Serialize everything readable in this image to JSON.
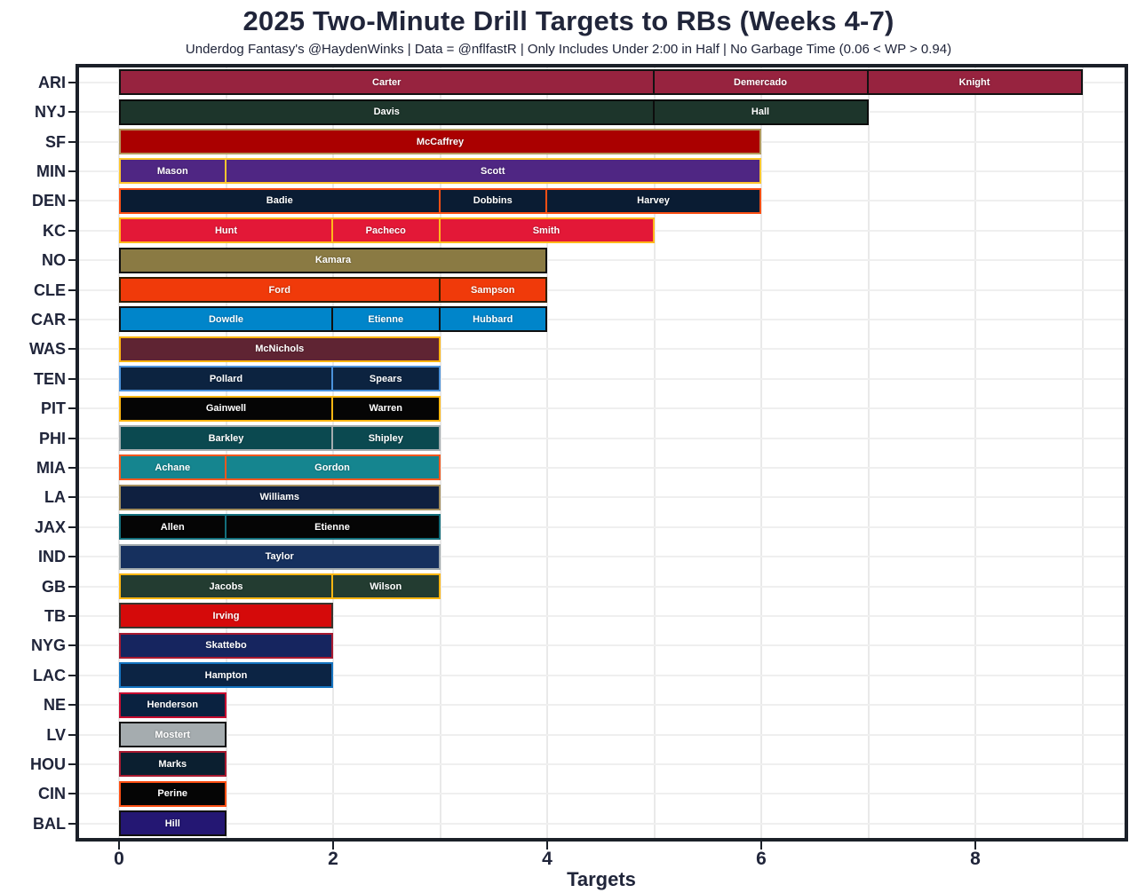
{
  "title": "2025 Two-Minute Drill Targets to RBs (Weeks 4-7)",
  "subtitle": "Underdog Fantasy's @HaydenWinks | Data = @nflfastR | Only Includes Under 2:00 in Half | No Garbage Time (0.06 < WP > 0.94)",
  "chart_data": {
    "type": "bar",
    "orientation": "horizontal",
    "title": "2025 Two-Minute Drill Targets to RBs (Weeks 4-7)",
    "xlabel": "Targets",
    "ylabel": "",
    "x_ticks": [
      0,
      2,
      4,
      6,
      8
    ],
    "xlim": [
      0,
      9.39
    ],
    "grid": true,
    "legend": "none",
    "teams": [
      {
        "team": "ARI",
        "fill": "#97233F",
        "border": "#121212",
        "segments": [
          {
            "player": "Carter",
            "targets": 5
          },
          {
            "player": "Demercado",
            "targets": 2
          },
          {
            "player": "Knight",
            "targets": 2
          }
        ]
      },
      {
        "team": "NYJ",
        "fill": "#1d352b",
        "border": "#0d0d0d",
        "segments": [
          {
            "player": "Davis",
            "targets": 5
          },
          {
            "player": "Hall",
            "targets": 2
          }
        ]
      },
      {
        "team": "SF",
        "fill": "#AA0000",
        "border": "#B3995D",
        "segments": [
          {
            "player": "McCaffrey",
            "targets": 6
          }
        ]
      },
      {
        "team": "MIN",
        "fill": "#4F2683",
        "border": "#FFC62F",
        "segments": [
          {
            "player": "Mason",
            "targets": 1
          },
          {
            "player": "Scott",
            "targets": 5
          }
        ]
      },
      {
        "team": "DEN",
        "fill": "#0a1c33",
        "border": "#FB4F14",
        "segments": [
          {
            "player": "Badie",
            "targets": 3
          },
          {
            "player": "Dobbins",
            "targets": 1
          },
          {
            "player": "Harvey",
            "targets": 2
          }
        ]
      },
      {
        "team": "KC",
        "fill": "#E31837",
        "border": "#FFB81C",
        "segments": [
          {
            "player": "Hunt",
            "targets": 2
          },
          {
            "player": "Pacheco",
            "targets": 1
          },
          {
            "player": "Smith",
            "targets": 2
          }
        ]
      },
      {
        "team": "NO",
        "fill": "#8a7a43",
        "border": "#101010",
        "segments": [
          {
            "player": "Kamara",
            "targets": 4
          }
        ]
      },
      {
        "team": "CLE",
        "fill": "#f03a0a",
        "border": "#311d00",
        "segments": [
          {
            "player": "Ford",
            "targets": 3
          },
          {
            "player": "Sampson",
            "targets": 1
          }
        ]
      },
      {
        "team": "CAR",
        "fill": "#0085CA",
        "border": "#101010",
        "segments": [
          {
            "player": "Dowdle",
            "targets": 2
          },
          {
            "player": "Etienne",
            "targets": 1
          },
          {
            "player": "Hubbard",
            "targets": 1
          }
        ]
      },
      {
        "team": "WAS",
        "fill": "#5f2433",
        "border": "#FFB612",
        "segments": [
          {
            "player": "McNichols",
            "targets": 3
          }
        ]
      },
      {
        "team": "TEN",
        "fill": "#0C2340",
        "border": "#4B92DB",
        "segments": [
          {
            "player": "Pollard",
            "targets": 2
          },
          {
            "player": "Spears",
            "targets": 1
          }
        ]
      },
      {
        "team": "PIT",
        "fill": "#050505",
        "border": "#FFB612",
        "segments": [
          {
            "player": "Gainwell",
            "targets": 2
          },
          {
            "player": "Warren",
            "targets": 1
          }
        ]
      },
      {
        "team": "PHI",
        "fill": "#0b4950",
        "border": "#A5ACAF",
        "segments": [
          {
            "player": "Barkley",
            "targets": 2
          },
          {
            "player": "Shipley",
            "targets": 1
          }
        ]
      },
      {
        "team": "MIA",
        "fill": "#15858f",
        "border": "#f1581f",
        "segments": [
          {
            "player": "Achane",
            "targets": 1
          },
          {
            "player": "Gordon",
            "targets": 2
          }
        ]
      },
      {
        "team": "LA",
        "fill": "#0f2040",
        "border": "#a48f5e",
        "segments": [
          {
            "player": "Williams",
            "targets": 3
          }
        ]
      },
      {
        "team": "JAX",
        "fill": "#050505",
        "border": "#136f7c",
        "segments": [
          {
            "player": "Allen",
            "targets": 1
          },
          {
            "player": "Etienne",
            "targets": 2
          }
        ]
      },
      {
        "team": "IND",
        "fill": "#16305e",
        "border": "#A2AAAD",
        "segments": [
          {
            "player": "Taylor",
            "targets": 3
          }
        ]
      },
      {
        "team": "GB",
        "fill": "#233c31",
        "border": "#FFB612",
        "segments": [
          {
            "player": "Jacobs",
            "targets": 2
          },
          {
            "player": "Wilson",
            "targets": 1
          }
        ]
      },
      {
        "team": "TB",
        "fill": "#D50A0A",
        "border": "#3a352e",
        "segments": [
          {
            "player": "Irving",
            "targets": 2
          }
        ]
      },
      {
        "team": "NYG",
        "fill": "#16255f",
        "border": "#A71930",
        "segments": [
          {
            "player": "Skattebo",
            "targets": 2
          }
        ]
      },
      {
        "team": "LAC",
        "fill": "#0c2444",
        "border": "#1473c0",
        "segments": [
          {
            "player": "Hampton",
            "targets": 2
          }
        ]
      },
      {
        "team": "NE",
        "fill": "#0a2240",
        "border": "#C60C30",
        "segments": [
          {
            "player": "Henderson",
            "targets": 1
          }
        ]
      },
      {
        "team": "LV",
        "fill": "#A5ACAF",
        "border": "#101010",
        "segments": [
          {
            "player": "Mostert",
            "targets": 1
          }
        ]
      },
      {
        "team": "HOU",
        "fill": "#0b1f30",
        "border": "#A71930",
        "segments": [
          {
            "player": "Marks",
            "targets": 1
          }
        ]
      },
      {
        "team": "CIN",
        "fill": "#050505",
        "border": "#FB4F14",
        "segments": [
          {
            "player": "Perine",
            "targets": 1
          }
        ]
      },
      {
        "team": "BAL",
        "fill": "#241773",
        "border": "#101010",
        "segments": [
          {
            "player": "Hill",
            "targets": 1
          }
        ]
      }
    ]
  }
}
